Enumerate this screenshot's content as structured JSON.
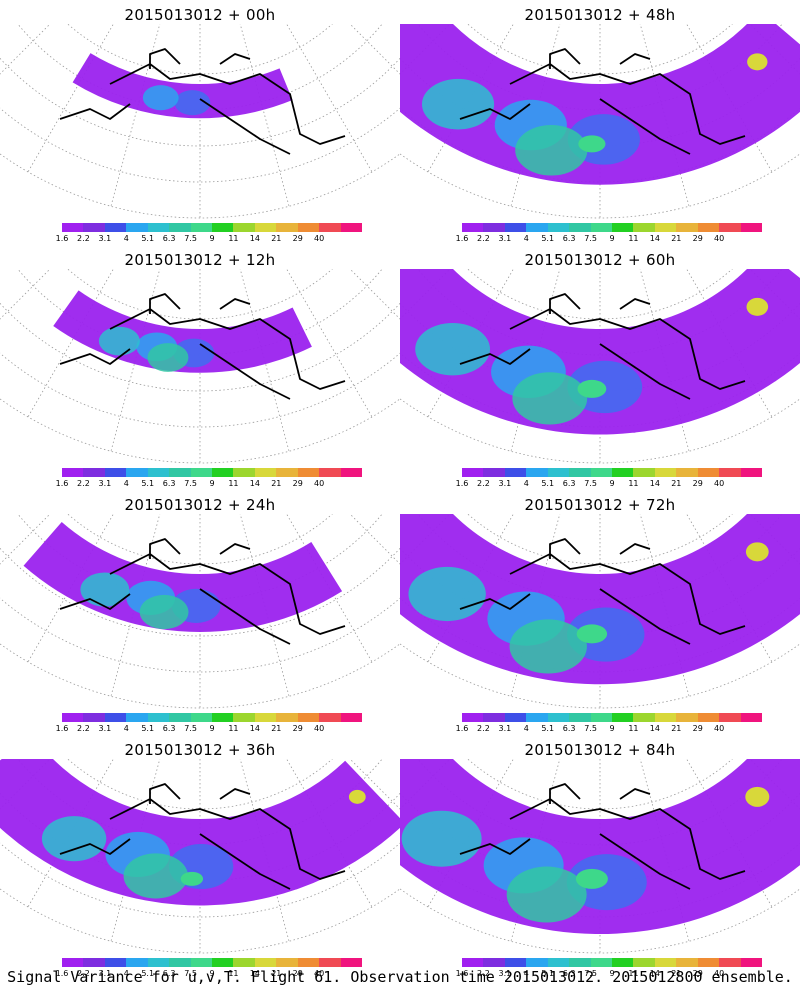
{
  "panels": [
    {
      "title": "2015013012 + 00h",
      "coverage": 0.15
    },
    {
      "title": "2015013012 + 48h",
      "coverage": 0.85
    },
    {
      "title": "2015013012 + 12h",
      "coverage": 0.25
    },
    {
      "title": "2015013012 + 60h",
      "coverage": 0.9
    },
    {
      "title": "2015013012 + 24h",
      "coverage": 0.4
    },
    {
      "title": "2015013012 + 72h",
      "coverage": 0.95
    },
    {
      "title": "2015013012 + 36h",
      "coverage": 0.7
    },
    {
      "title": "2015013012 + 84h",
      "coverage": 1.0
    }
  ],
  "colorbar": {
    "ticks": [
      "1.6",
      "2.2",
      "3.1",
      "4",
      "5.1",
      "6.3",
      "7.5",
      "9",
      "11",
      "14",
      "21",
      "29",
      "40"
    ],
    "colors": [
      "#a020f0",
      "#7e2de0",
      "#3e4fe8",
      "#2aa6f0",
      "#2dc0cf",
      "#31c7a3",
      "#3ed88a",
      "#22d022",
      "#9cd62e",
      "#d8d83a",
      "#e8b43a",
      "#ef8c34",
      "#f04a54",
      "#f0147e"
    ]
  },
  "footer": "Signal Variance for u,v,T. Flight 61. Observation time 2015013012. 2015012800 ensemble."
}
